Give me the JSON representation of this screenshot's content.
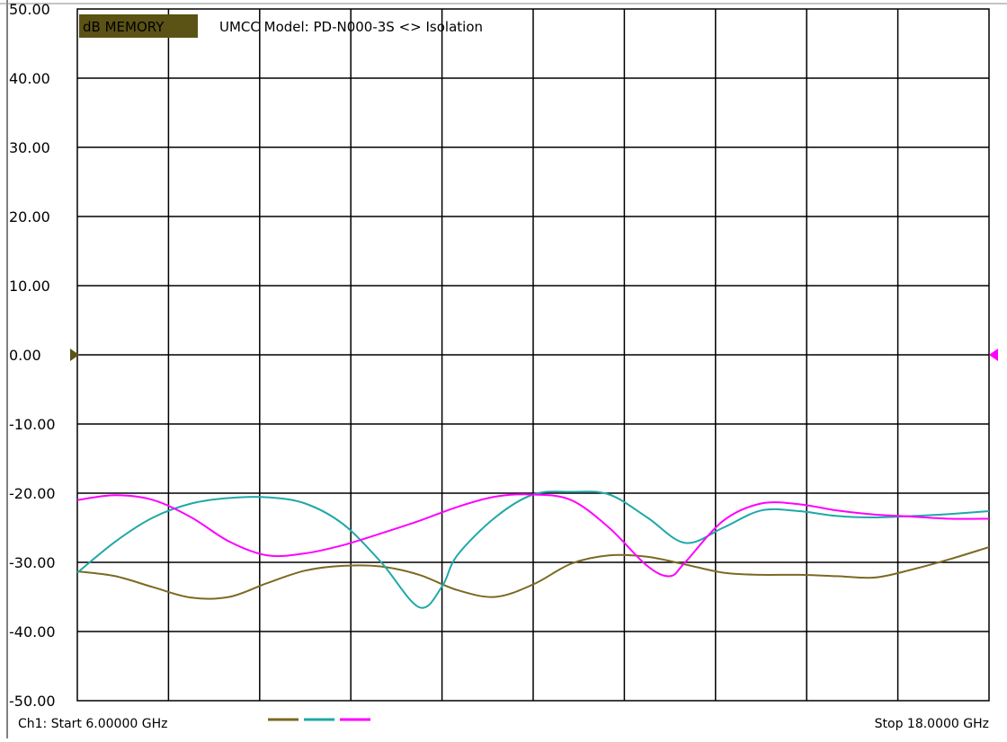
{
  "header": {
    "badge_label": "dB MEMORY",
    "title": "UMCC  Model: PD-N000-3S <> Isolation"
  },
  "footer": {
    "start_label": "Ch1: Start  6.00000 GHz",
    "stop_label": "Stop  18.0000 GHz"
  },
  "colors": {
    "grid": "#000000",
    "badge_bg": "#5b5215",
    "ref_marker_left": "#5b5215",
    "ref_marker_right": "#ff00ff"
  },
  "chart_data": {
    "type": "line",
    "title": "UMCC  Model: PD-N000-3S <> Isolation",
    "xlabel": "",
    "ylabel": "",
    "x_start_ghz": 6.0,
    "x_stop_ghz": 18.0,
    "ylim": [
      -50,
      50
    ],
    "yticks": [
      "50.00",
      "40.00",
      "30.00",
      "20.00",
      "10.00",
      "0.00",
      "-10.00",
      "-20.00",
      "-30.00",
      "-40.00",
      "-50.00"
    ],
    "yticks_values": [
      50,
      40,
      30,
      20,
      10,
      0,
      -10,
      -20,
      -30,
      -40,
      -50
    ],
    "x_divisions": 10,
    "grid": true,
    "reference_level": 0,
    "series": [
      {
        "color": "#7a6a22",
        "x": [
          6.0,
          6.5,
          7.0,
          7.5,
          8.0,
          8.5,
          9.0,
          9.5,
          10.0,
          10.5,
          11.0,
          11.5,
          12.0,
          12.5,
          13.0,
          13.5,
          14.0,
          14.5,
          15.0,
          15.5,
          16.0,
          16.5,
          17.0,
          17.5,
          18.0
        ],
        "values": [
          -31.3,
          -32.0,
          -33.6,
          -35.1,
          -35.0,
          -33.0,
          -31.2,
          -30.5,
          -30.6,
          -31.8,
          -34.0,
          -35.0,
          -33.2,
          -30.2,
          -29.0,
          -29.2,
          -30.3,
          -31.5,
          -31.8,
          -31.8,
          -32.0,
          -32.2,
          -31.0,
          -29.5,
          -27.8
        ]
      },
      {
        "color": "#1fa8a8",
        "x": [
          6.0,
          6.5,
          7.0,
          7.5,
          8.0,
          8.5,
          9.0,
          9.5,
          10.0,
          10.5,
          10.8,
          11.0,
          11.5,
          12.0,
          12.5,
          13.0,
          13.5,
          14.0,
          14.5,
          15.0,
          15.5,
          16.0,
          16.5,
          17.0,
          17.5,
          18.0
        ],
        "values": [
          -31.5,
          -27.0,
          -23.5,
          -21.5,
          -20.7,
          -20.6,
          -21.5,
          -24.5,
          -30.0,
          -36.5,
          -33.5,
          -29.0,
          -23.5,
          -20.2,
          -19.8,
          -20.2,
          -23.5,
          -27.2,
          -25.0,
          -22.5,
          -22.6,
          -23.3,
          -23.5,
          -23.3,
          -23.0,
          -22.6
        ]
      },
      {
        "color": "#ff00ff",
        "x": [
          6.0,
          6.5,
          7.0,
          7.5,
          8.0,
          8.5,
          9.0,
          9.5,
          10.0,
          10.5,
          11.0,
          11.5,
          12.0,
          12.5,
          13.0,
          13.5,
          13.8,
          14.0,
          14.5,
          15.0,
          15.5,
          16.0,
          16.5,
          17.0,
          17.5,
          18.0
        ],
        "values": [
          -21.0,
          -20.3,
          -21.0,
          -23.5,
          -27.0,
          -29.0,
          -28.7,
          -27.5,
          -25.8,
          -24.0,
          -22.0,
          -20.5,
          -20.2,
          -21.0,
          -25.0,
          -30.5,
          -32.0,
          -30.0,
          -24.0,
          -21.5,
          -21.6,
          -22.5,
          -23.1,
          -23.4,
          -23.7,
          -23.7
        ]
      }
    ]
  }
}
